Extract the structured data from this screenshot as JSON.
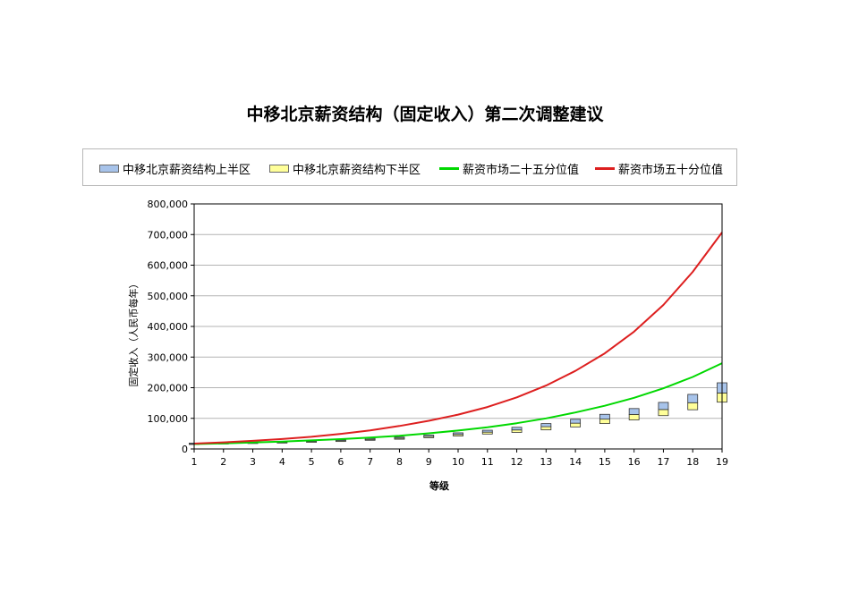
{
  "chart_data": {
    "type": "line",
    "title": "中移北京薪资结构（固定收入）第二次调整建议",
    "xlabel": "等级",
    "ylabel": "固定收入（人民币每年）",
    "xlim": [
      1,
      19
    ],
    "ylim": [
      0,
      800000
    ],
    "grid": true,
    "legend_position": "top",
    "categories": [
      1,
      2,
      3,
      4,
      5,
      6,
      7,
      8,
      9,
      10,
      11,
      12,
      13,
      14,
      15,
      16,
      17,
      18,
      19
    ],
    "y_ticks": [
      "0",
      "100,000",
      "200,000",
      "300,000",
      "400,000",
      "500,000",
      "600,000",
      "700,000",
      "800,000"
    ],
    "series": [
      {
        "name": "中移北京薪资结构上半区",
        "type": "stacked-box-upper",
        "color": "#a7c3ea",
        "values": [
          1700,
          1700,
          1900,
          2100,
          2400,
          2700,
          3100,
          3500,
          4400,
          5200,
          6200,
          8600,
          10200,
          12700,
          15700,
          19200,
          23200,
          27200,
          33200
        ]
      },
      {
        "name": "中移北京薪资结构下半区",
        "type": "stacked-box-lower",
        "color": "#ffff99",
        "base": [
          16000,
          17500,
          18800,
          20200,
          22200,
          24600,
          28300,
          31800,
          36800,
          42300,
          48700,
          54000,
          62300,
          71900,
          82900,
          94700,
          108800,
          128000,
          152800
        ],
        "values": [
          1500,
          1700,
          1900,
          2100,
          2400,
          2700,
          3100,
          3500,
          4000,
          5200,
          6300,
          8100,
          10400,
          12300,
          14500,
          18000,
          20000,
          23000,
          30000
        ]
      },
      {
        "name": "薪资市场二十五分位值",
        "type": "line",
        "color": "#00d800",
        "values": [
          16000,
          18000,
          21000,
          24000,
          28000,
          32000,
          37000,
          43000,
          51000,
          60000,
          71000,
          84000,
          100000,
          119000,
          141000,
          167000,
          198000,
          235000,
          280000
        ]
      },
      {
        "name": "薪资市场五十分位值",
        "type": "line",
        "color": "#dd1f1f",
        "values": [
          17500,
          21500,
          26500,
          32500,
          39800,
          49200,
          60800,
          75000,
          92000,
          112000,
          137000,
          168500,
          207000,
          255000,
          312000,
          383000,
          470000,
          578000,
          707000
        ]
      }
    ]
  }
}
